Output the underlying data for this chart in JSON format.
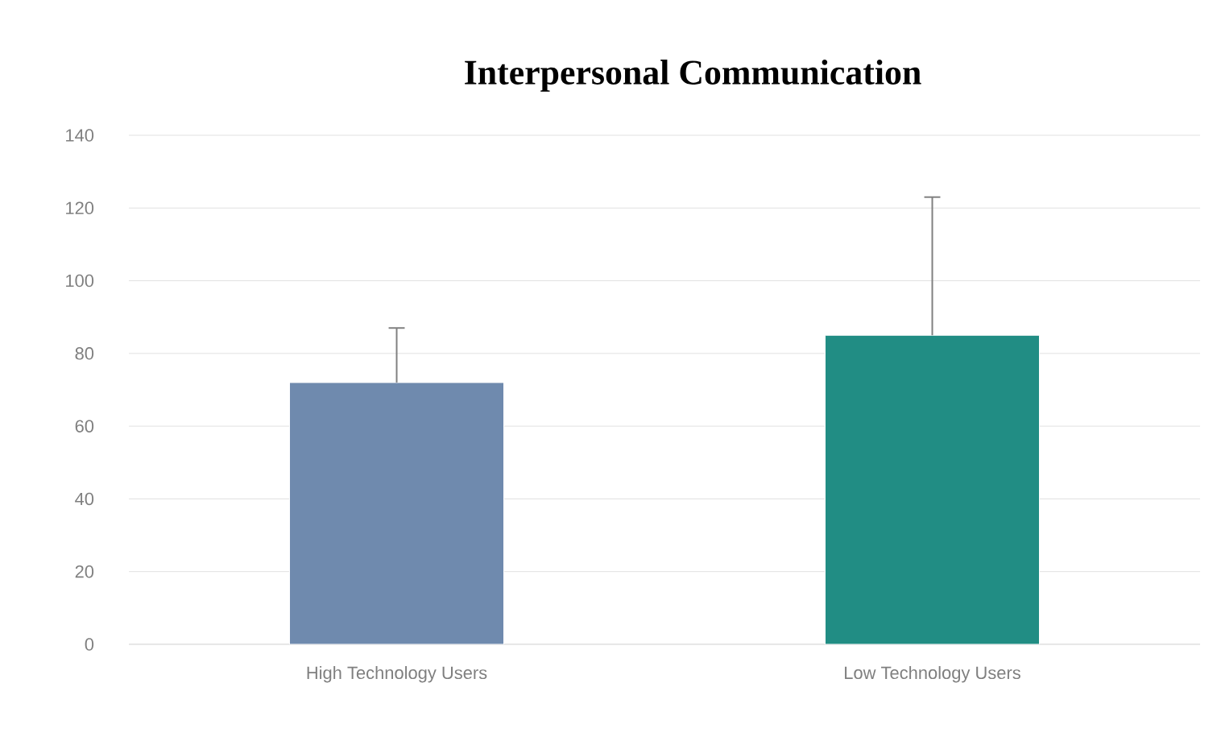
{
  "chart_data": {
    "type": "bar",
    "title": "Interpersonal Communication",
    "categories": [
      "High Technology Users",
      "Low Technology Users"
    ],
    "values": [
      72,
      85
    ],
    "colors": [
      "#6f8aae",
      "#218d84"
    ],
    "errors": [
      [
        72,
        87
      ],
      [
        85,
        123
      ]
    ],
    "ylim": [
      0,
      140
    ],
    "yticks": [
      0,
      20,
      40,
      60,
      80,
      100,
      120,
      140
    ],
    "grid": "y"
  }
}
